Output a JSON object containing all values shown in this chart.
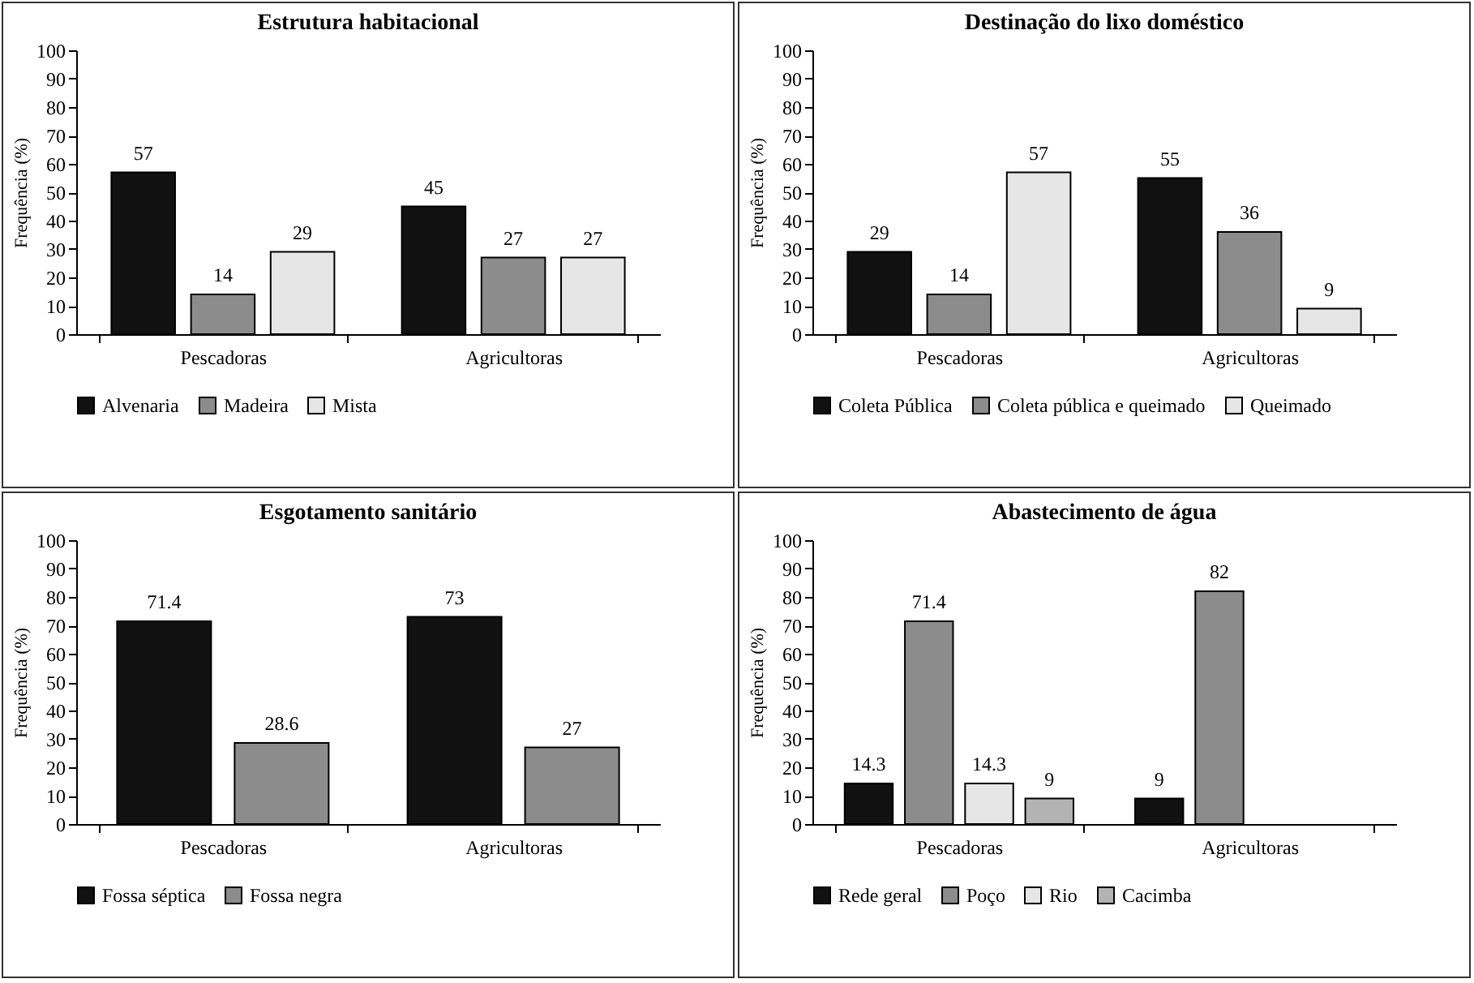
{
  "chart_data": [
    {
      "type": "bar",
      "title": "Estrutura habitacional",
      "ylabel": "Frequência  (%)",
      "categories": [
        "Pescadoras",
        "Agricultoras"
      ],
      "ylim": [
        0,
        100
      ],
      "yticks": [
        0,
        10,
        20,
        30,
        40,
        50,
        60,
        70,
        80,
        90,
        100
      ],
      "grid": false,
      "legend": "bottom",
      "data_labels": true,
      "series": [
        {
          "name": "Alvenaria",
          "color": "#111111",
          "values": [
            57,
            45
          ]
        },
        {
          "name": "Madeira",
          "color": "#8c8c8c",
          "values": [
            14,
            27
          ]
        },
        {
          "name": "Mista",
          "color": "#e6e6e6",
          "values": [
            29,
            27
          ]
        }
      ]
    },
    {
      "type": "bar",
      "title": "Destinação do lixo doméstico",
      "ylabel": "Frequência  (%)",
      "categories": [
        "Pescadoras",
        "Agricultoras"
      ],
      "ylim": [
        0,
        100
      ],
      "yticks": [
        0,
        10,
        20,
        30,
        40,
        50,
        60,
        70,
        80,
        90,
        100
      ],
      "grid": false,
      "legend": "bottom",
      "data_labels": true,
      "series": [
        {
          "name": "Coleta Pública",
          "color": "#111111",
          "values": [
            29,
            55
          ]
        },
        {
          "name": "Coleta pública e queimado",
          "color": "#8c8c8c",
          "values": [
            14,
            36
          ]
        },
        {
          "name": "Queimado",
          "color": "#e6e6e6",
          "values": [
            57,
            9
          ]
        }
      ]
    },
    {
      "type": "bar",
      "title": "Esgotamento sanitário",
      "ylabel": "Frequência  (%)",
      "categories": [
        "Pescadoras",
        "Agricultoras"
      ],
      "ylim": [
        0,
        100
      ],
      "yticks": [
        0,
        10,
        20,
        30,
        40,
        50,
        60,
        70,
        80,
        90,
        100
      ],
      "grid": false,
      "legend": "bottom",
      "data_labels": true,
      "series": [
        {
          "name": "Fossa séptica",
          "color": "#111111",
          "values": [
            71.4,
            73
          ]
        },
        {
          "name": "Fossa negra",
          "color": "#8c8c8c",
          "values": [
            28.6,
            27
          ]
        }
      ]
    },
    {
      "type": "bar",
      "title": "Abastecimento de água",
      "ylabel": "Frequência  (%)",
      "categories": [
        "Pescadoras",
        "Agricultoras"
      ],
      "ylim": [
        0,
        100
      ],
      "yticks": [
        0,
        10,
        20,
        30,
        40,
        50,
        60,
        70,
        80,
        90,
        100
      ],
      "grid": false,
      "legend": "bottom",
      "data_labels": true,
      "series": [
        {
          "name": "Rede geral",
          "color": "#111111",
          "values": [
            14.3,
            9
          ]
        },
        {
          "name": "Poço",
          "color": "#8c8c8c",
          "values": [
            71.4,
            82
          ]
        },
        {
          "name": "Rio",
          "color": "#e6e6e6",
          "values": [
            14.3,
            null
          ]
        },
        {
          "name": "Cacimba",
          "color": "#b3b3b3",
          "values": [
            9,
            null
          ]
        }
      ]
    }
  ]
}
